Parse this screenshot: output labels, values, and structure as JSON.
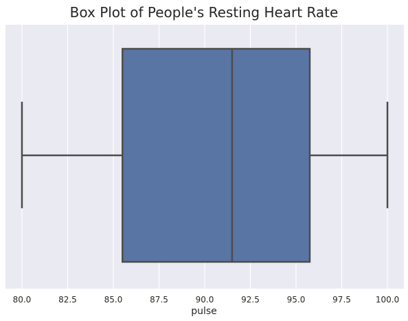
{
  "chart_data": {
    "type": "box",
    "title": "Box Plot of People's Resting Heart Rate",
    "xlabel": "pulse",
    "ylabel": "",
    "orientation": "horizontal",
    "xlim": [
      79.1,
      100.9
    ],
    "xticks": [
      80.0,
      82.5,
      85.0,
      87.5,
      90.0,
      92.5,
      95.0,
      97.5,
      100.0
    ],
    "xtick_labels": [
      "80.0",
      "82.5",
      "85.0",
      "87.5",
      "90.0",
      "92.5",
      "95.0",
      "97.5",
      "100.0"
    ],
    "grid": true,
    "series": [
      {
        "min": 80.0,
        "q1": 85.5,
        "median": 91.5,
        "q3": 95.75,
        "max": 100.0
      }
    ],
    "colors": {
      "box_fill": "#5975a4",
      "line": "#4c4c4c",
      "background": "#eaeaf2",
      "grid": "#ffffff",
      "text": "#262626"
    }
  }
}
